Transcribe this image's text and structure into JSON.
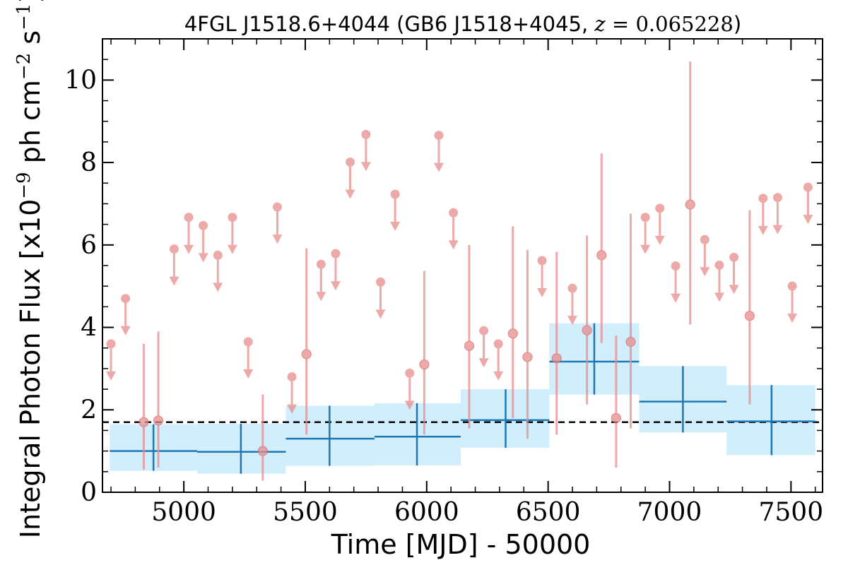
{
  "chart_data": {
    "type": "scatter",
    "title_parts": {
      "prefix": "4FGL J1518.6+4044 (GB6 J1518+4045, ",
      "z_symbol": "z",
      "equals": " = ",
      "z_value": "0.065228",
      "suffix": ")"
    },
    "xlabel": "Time [MJD] - 50000",
    "ylabel_parts": {
      "prefix": "Integral Photon Flux [x10",
      "exp1": "−9",
      "middle": " ph cm",
      "exp2": "−2",
      "s": " s",
      "exp3": "−1",
      "suffix": "]"
    },
    "xlim": [
      4665,
      7630
    ],
    "ylim": [
      0,
      11
    ],
    "x_ticks": [
      5000,
      5500,
      6000,
      6500,
      7000,
      7500
    ],
    "x_tick_labels": [
      "5000",
      "5500",
      "6000",
      "6500",
      "7000",
      "7500"
    ],
    "y_ticks": [
      0,
      2,
      4,
      6,
      8,
      10
    ],
    "y_tick_labels": [
      "0",
      "2",
      "4",
      "6",
      "8",
      "10"
    ],
    "mean_flux": 1.7,
    "colors": {
      "detection": "#e88c8c",
      "detection_edge": "#d86868",
      "binned": "#1f77b4",
      "binned_band": "#d0eefc",
      "mean_line": "#000000"
    },
    "upper_limits": [
      {
        "x": 4700,
        "y": 3.6
      },
      {
        "x": 4760,
        "y": 4.7
      },
      {
        "x": 4960,
        "y": 5.9
      },
      {
        "x": 5020,
        "y": 6.67
      },
      {
        "x": 5080,
        "y": 6.47
      },
      {
        "x": 5140,
        "y": 5.75
      },
      {
        "x": 5200,
        "y": 6.67
      },
      {
        "x": 5265,
        "y": 3.65
      },
      {
        "x": 5385,
        "y": 6.92
      },
      {
        "x": 5445,
        "y": 2.8
      },
      {
        "x": 5565,
        "y": 5.53
      },
      {
        "x": 5625,
        "y": 5.79
      },
      {
        "x": 5685,
        "y": 8.01
      },
      {
        "x": 5750,
        "y": 8.68
      },
      {
        "x": 5810,
        "y": 5.1
      },
      {
        "x": 5870,
        "y": 7.23
      },
      {
        "x": 5930,
        "y": 2.89
      },
      {
        "x": 6050,
        "y": 8.66
      },
      {
        "x": 6110,
        "y": 6.78
      },
      {
        "x": 6235,
        "y": 3.92
      },
      {
        "x": 6295,
        "y": 3.6
      },
      {
        "x": 6475,
        "y": 5.62
      },
      {
        "x": 6600,
        "y": 4.95
      },
      {
        "x": 6900,
        "y": 6.67
      },
      {
        "x": 6960,
        "y": 6.89
      },
      {
        "x": 7025,
        "y": 5.49
      },
      {
        "x": 7145,
        "y": 6.13
      },
      {
        "x": 7205,
        "y": 5.51
      },
      {
        "x": 7265,
        "y": 5.7
      },
      {
        "x": 7385,
        "y": 7.13
      },
      {
        "x": 7445,
        "y": 7.15
      },
      {
        "x": 7505,
        "y": 5.0
      },
      {
        "x": 7570,
        "y": 7.4
      }
    ],
    "detections": [
      {
        "x": 4835,
        "y": 1.7,
        "lo": 0.55,
        "hi": 3.6
      },
      {
        "x": 4895,
        "y": 1.74,
        "lo": 0.6,
        "hi": 3.9
      },
      {
        "x": 5325,
        "y": 1.0,
        "lo": 0.28,
        "hi": 2.37
      },
      {
        "x": 5505,
        "y": 3.35,
        "lo": 1.4,
        "hi": 5.92
      },
      {
        "x": 5990,
        "y": 3.1,
        "lo": 1.4,
        "hi": 5.37
      },
      {
        "x": 6175,
        "y": 3.55,
        "lo": 1.55,
        "hi": 6.0
      },
      {
        "x": 6355,
        "y": 3.85,
        "lo": 1.8,
        "hi": 6.45
      },
      {
        "x": 6415,
        "y": 3.28,
        "lo": 1.3,
        "hi": 5.88
      },
      {
        "x": 6535,
        "y": 3.25,
        "lo": 1.4,
        "hi": 5.83
      },
      {
        "x": 6660,
        "y": 3.93,
        "lo": 2.13,
        "hi": 6.23
      },
      {
        "x": 6720,
        "y": 5.75,
        "lo": 3.62,
        "hi": 8.22
      },
      {
        "x": 6780,
        "y": 1.8,
        "lo": 0.6,
        "hi": 3.8
      },
      {
        "x": 6840,
        "y": 3.65,
        "lo": 1.55,
        "hi": 6.76
      },
      {
        "x": 7085,
        "y": 6.98,
        "lo": 4.07,
        "hi": 10.45
      },
      {
        "x": 7330,
        "y": 4.28,
        "lo": 2.13,
        "hi": 6.84
      }
    ],
    "binned": [
      {
        "x0": 4695,
        "x1": 5055,
        "xc": 4875,
        "y": 1.0,
        "lo": 0.52,
        "hi": 1.65
      },
      {
        "x0": 5055,
        "x1": 5420,
        "xc": 5235,
        "y": 0.98,
        "lo": 0.45,
        "hi": 1.66
      },
      {
        "x0": 5420,
        "x1": 5785,
        "xc": 5600,
        "y": 1.3,
        "lo": 0.64,
        "hi": 2.1
      },
      {
        "x0": 5785,
        "x1": 6140,
        "xc": 5960,
        "y": 1.35,
        "lo": 0.65,
        "hi": 2.16
      },
      {
        "x0": 6140,
        "x1": 6505,
        "xc": 6325,
        "y": 1.75,
        "lo": 1.08,
        "hi": 2.5
      },
      {
        "x0": 6505,
        "x1": 6875,
        "xc": 6690,
        "y": 3.17,
        "lo": 2.37,
        "hi": 4.1
      },
      {
        "x0": 6875,
        "x1": 7235,
        "xc": 7055,
        "y": 2.2,
        "lo": 1.45,
        "hi": 3.06
      },
      {
        "x0": 7235,
        "x1": 7600,
        "xc": 7420,
        "y": 1.72,
        "lo": 0.9,
        "hi": 2.6
      }
    ]
  }
}
